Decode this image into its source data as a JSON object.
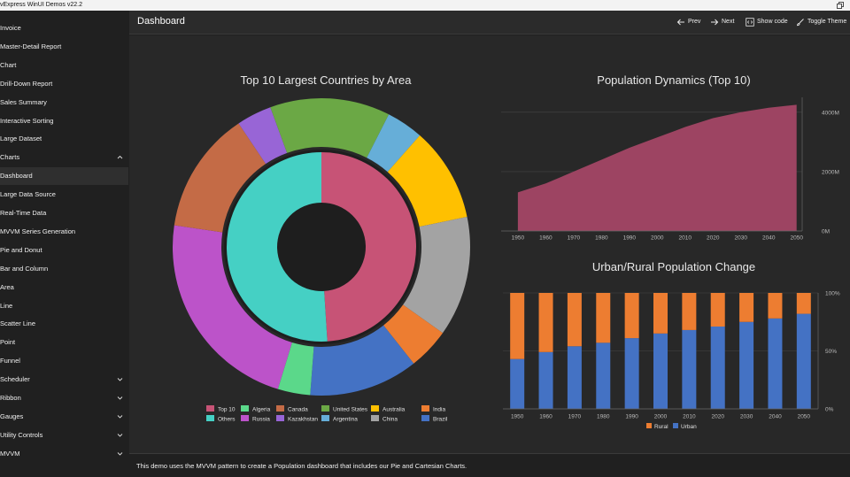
{
  "window": {
    "title": "vExpress WinUI Demos v22.2"
  },
  "sidebar": {
    "items": [
      {
        "label": "Invoice",
        "id": "invoice"
      },
      {
        "label": "Master-Detail Report",
        "id": "master-detail-report"
      },
      {
        "label": "Chart",
        "id": "chart"
      },
      {
        "label": "Drill-Down Report",
        "id": "drill-down-report"
      },
      {
        "label": "Sales Summary",
        "id": "sales-summary"
      },
      {
        "label": "Interactive Sorting",
        "id": "interactive-sorting"
      },
      {
        "label": "Large Dataset",
        "id": "large-dataset"
      },
      {
        "label": "Charts",
        "id": "charts",
        "expanded": true
      },
      {
        "label": "Dashboard",
        "id": "dashboard",
        "selected": true
      },
      {
        "label": "Large Data Source",
        "id": "large-data-source"
      },
      {
        "label": "Real-Time Data",
        "id": "real-time-data"
      },
      {
        "label": "MVVM Series Generation",
        "id": "mvvm-series-generation"
      },
      {
        "label": "Pie and Donut",
        "id": "pie-and-donut"
      },
      {
        "label": "Bar and Column",
        "id": "bar-and-column"
      },
      {
        "label": "Area",
        "id": "area"
      },
      {
        "label": "Line",
        "id": "line"
      },
      {
        "label": "Scatter Line",
        "id": "scatter-line"
      },
      {
        "label": "Point",
        "id": "point"
      },
      {
        "label": "Funnel",
        "id": "funnel"
      },
      {
        "label": "Scheduler",
        "id": "scheduler",
        "expandable": true
      },
      {
        "label": "Ribbon",
        "id": "ribbon",
        "expandable": true
      },
      {
        "label": "Gauges",
        "id": "gauges",
        "expandable": true
      },
      {
        "label": "Utility Controls",
        "id": "utility-controls",
        "expandable": true
      },
      {
        "label": "MVVM",
        "id": "mvvm",
        "expandable": true
      }
    ]
  },
  "header": {
    "title": "Dashboard",
    "prev_label": "Prev",
    "next_label": "Next",
    "show_code_label": "Show code",
    "toggle_theme_label": "Toggle Theme"
  },
  "footer": {
    "text": "This demo uses the MVVM pattern to create a Population dashboard that includes our Pie and Cartesian Charts."
  },
  "chart_data": [
    {
      "type": "pie",
      "variant": "nested-donut",
      "title": "Top 10 Largest Countries by Area",
      "inner": [
        {
          "name": "Top 10",
          "value": 49,
          "color": "#c75376"
        },
        {
          "name": "Others",
          "value": 51,
          "color": "#45d0c4"
        }
      ],
      "outer": [
        {
          "name": "Russia",
          "value": 22.5,
          "color": "#bc53c9"
        },
        {
          "name": "Canada",
          "value": 13.2,
          "color": "#c46b46"
        },
        {
          "name": "Kazakhstan",
          "value": 3.8,
          "color": "#9865d6"
        },
        {
          "name": "United States",
          "value": 13.0,
          "color": "#6ba845"
        },
        {
          "name": "Argentina",
          "value": 4.0,
          "color": "#66aed8"
        },
        {
          "name": "Australia",
          "value": 10.2,
          "color": "#ffc000"
        },
        {
          "name": "China",
          "value": 13.0,
          "color": "#a3a3a3"
        },
        {
          "name": "India",
          "value": 4.5,
          "color": "#ed7d31"
        },
        {
          "name": "Brazil",
          "value": 11.8,
          "color": "#4472c4"
        },
        {
          "name": "Algeria",
          "value": 3.5,
          "color": "#5bd88a"
        }
      ],
      "legend": {
        "position": "bottom",
        "items": [
          {
            "name": "Top 10",
            "color": "#c75376"
          },
          {
            "name": "Algeria",
            "color": "#5bd88a"
          },
          {
            "name": "Canada",
            "color": "#c46b46"
          },
          {
            "name": "United States",
            "color": "#6ba845"
          },
          {
            "name": "Australia",
            "color": "#ffc000"
          },
          {
            "name": "India",
            "color": "#ed7d31"
          },
          {
            "name": "Others",
            "color": "#45d0c4"
          },
          {
            "name": "Russia",
            "color": "#bc53c9"
          },
          {
            "name": "Kazakhstan",
            "color": "#9865d6"
          },
          {
            "name": "Argentina",
            "color": "#66aed8"
          },
          {
            "name": "China",
            "color": "#a3a3a3"
          },
          {
            "name": "Brazil",
            "color": "#4472c4"
          }
        ]
      }
    },
    {
      "type": "area",
      "title": "Population Dynamics (Top 10)",
      "x": [
        1950,
        1960,
        1970,
        1980,
        1990,
        2000,
        2010,
        2020,
        2030,
        2040,
        2050
      ],
      "series": [
        {
          "values": [
            1300,
            1600,
            2000,
            2400,
            2800,
            3150,
            3500,
            3800,
            4000,
            4150,
            4250
          ],
          "color": "#9d4462"
        }
      ],
      "xlim": [
        1944,
        2052
      ],
      "ylim": [
        0,
        4500
      ],
      "yticks": [
        0,
        2000,
        4000
      ],
      "ytick_labels": [
        "0M",
        "2000M",
        "4000M"
      ],
      "y_axis_side": "right",
      "grid": true
    },
    {
      "type": "bar",
      "variant": "stacked-100",
      "title": "Urban/Rural Population Change",
      "categories": [
        "1950",
        "1960",
        "1970",
        "1980",
        "1990",
        "2000",
        "2010",
        "2020",
        "2030",
        "2040",
        "2050"
      ],
      "series": [
        {
          "name": "Urban",
          "values": [
            43,
            49,
            54,
            57,
            61,
            65,
            68,
            71,
            75,
            78,
            82
          ],
          "color": "#4472c4"
        },
        {
          "name": "Rural",
          "values": [
            57,
            51,
            46,
            43,
            39,
            35,
            32,
            29,
            25,
            22,
            18
          ],
          "color": "#ed7d31"
        }
      ],
      "ylim": [
        0,
        100
      ],
      "yticks": [
        0,
        50,
        100
      ],
      "ytick_labels": [
        "0%",
        "50%",
        "100%"
      ],
      "y_axis_side": "right",
      "grid": true,
      "legend": {
        "position": "bottom",
        "items": [
          {
            "name": "Rural",
            "color": "#ed7d31"
          },
          {
            "name": "Urban",
            "color": "#4472c4"
          }
        ]
      }
    }
  ]
}
